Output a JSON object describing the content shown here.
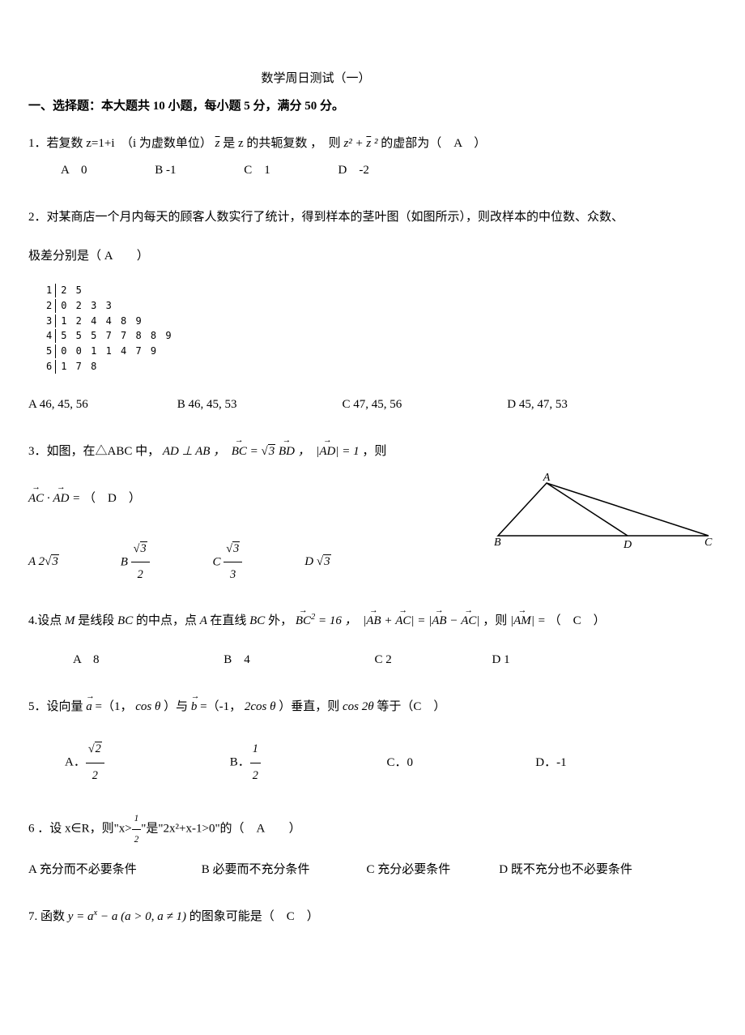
{
  "title": "数学周日测试（一）",
  "section_header": "一、选择题：本大题共 10 小题，每小题 5 分，满分 50 分。",
  "q1": {
    "text_a": "1．若复数 z=1+i　（i 为虚数单位）",
    "text_b": "是 z 的共轭复数 ，　则",
    "text_c": "的虚部为（　A　）",
    "optA": "A　0",
    "optB": "B -1",
    "optC": "C　1",
    "optD": "D　-2"
  },
  "q2": {
    "text": "2．对某商店一个月内每天的顾客人数实行了统计，得到样本的茎叶图（如图所示），则改样本的中位数、众数、",
    "text2": "极差分别是（ A　　）",
    "stemleaf": {
      "stems": [
        "1",
        "2",
        "3",
        "4",
        "5",
        "6"
      ],
      "leaves": [
        "2 5",
        "0 2 3 3",
        "1 2 4 4 8 9",
        "5 5 5 7 7 8 8 9",
        "0 0 1 1 4 7 9",
        "1 7 8"
      ]
    },
    "optA": "A 46, 45, 56",
    "optB": "B 46, 45, 53",
    "optC": "C 47, 45, 56",
    "optD": "D 45, 47, 53"
  },
  "q3": {
    "text_a": "3．如图，在△ABC 中，",
    "text_b": "，则",
    "eq": "（　D　）",
    "labels": {
      "A": "A",
      "B": "B",
      "C": "C",
      "D": "D"
    }
  },
  "q4": {
    "text_a": "4.设点",
    "text_b": "是线段",
    "text_c": "的中点，点",
    "text_d": "在直线",
    "text_e": "外，",
    "text_f": "，则",
    "text_g": "（　C　）",
    "optA": "A　8",
    "optB": "B　4",
    "optC": "C 2",
    "optD": "D 1"
  },
  "q5": {
    "text_a": "5．设向量",
    "text_b": "=（1，",
    "text_c": "）与",
    "text_d": "=（-1，",
    "text_e": "）垂直，则",
    "text_f": "等于（C　）",
    "optA_pre": "A．",
    "optB_pre": "B．",
    "optC": "C．0",
    "optD": "D．-1"
  },
  "q6": {
    "text_a": "6 ．设 x∈R，则\"x>",
    "text_b": "\"是\"2x²+x-1>0\"的（　A　　）",
    "optA": "A 充分而不必要条件",
    "optB": "B 必要而不充分条件",
    "optC": "C 充分必要条件",
    "optD": "D 既不充分也不必要条件"
  },
  "q7": {
    "text_a": "7. 函数",
    "text_b": "的图象可能是（　C　）"
  }
}
